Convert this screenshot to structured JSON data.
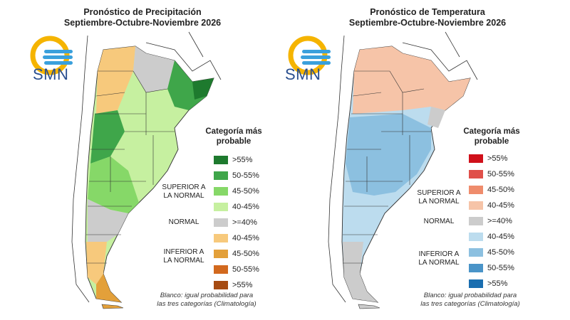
{
  "panels": [
    {
      "title_line1": "Pronóstico de Precipitación",
      "title_line2": "Septiembre-Octubre-Noviembre 2026",
      "logo_text": "SMN",
      "legend_title_line1": "Categoría más",
      "legend_title_line2": "probable",
      "legend": [
        {
          "label": ">55%",
          "color": "#1e7a2e"
        },
        {
          "label": "50-55%",
          "color": "#3fa64a"
        },
        {
          "label": "45-50%",
          "color": "#86d868"
        },
        {
          "label": "40-45%",
          "color": "#c6f0a0"
        },
        {
          "label": ">=40%",
          "color": "#cccccc"
        },
        {
          "label": "40-45%",
          "color": "#f7c97c"
        },
        {
          "label": "45-50%",
          "color": "#e3a03a"
        },
        {
          "label": "50-55%",
          "color": "#d2691e"
        },
        {
          "label": ">55%",
          "color": "#a64b12"
        }
      ],
      "upper_label_line1": "SUPERIOR A",
      "upper_label_line2": "LA NORMAL",
      "normal_label": "NORMAL",
      "lower_label_line1": "INFERIOR A",
      "lower_label_line2": "LA NORMAL",
      "footnote_line1": "Blanco: igual probabilidad para",
      "footnote_line2": "las tres categorías (Climatología)"
    },
    {
      "title_line1": "Pronóstico de Temperatura",
      "title_line2": "Septiembre-Octubre-Noviembre 2026",
      "logo_text": "SMN",
      "legend_title_line1": "Categoría más",
      "legend_title_line2": "probable",
      "legend": [
        {
          "label": ">55%",
          "color": "#d0101a"
        },
        {
          "label": "50-55%",
          "color": "#e0504a"
        },
        {
          "label": "45-50%",
          "color": "#ef8c6c"
        },
        {
          "label": "40-45%",
          "color": "#f6c4a8"
        },
        {
          "label": ">=40%",
          "color": "#cccccc"
        },
        {
          "label": "40-45%",
          "color": "#bcdcee"
        },
        {
          "label": "45-50%",
          "color": "#8cc0e0"
        },
        {
          "label": "50-55%",
          "color": "#4a94c8"
        },
        {
          "label": ">55%",
          "color": "#1a6eb0"
        }
      ],
      "upper_label_line1": "SUPERIOR A",
      "upper_label_line2": "LA NORMAL",
      "normal_label": "NORMAL",
      "lower_label_line1": "INFERIOR A",
      "lower_label_line2": "LA NORMAL",
      "footnote_line1": "Blanco: igual probabilidad para",
      "footnote_line2": "las tres categorías (Climatología)"
    }
  ],
  "map_colors": {
    "precip": {
      "north_west": "#f7c97c",
      "north_center": "#cccccc",
      "north_east": "#3fa64a",
      "north_east_dark": "#1e7a2e",
      "center": "#c6f0a0",
      "center_mid": "#86d868",
      "west_strip": "#3fa64a",
      "south": "#cccccc",
      "far_south": "#f7c97c",
      "tip": "#e3a03a"
    },
    "temp": {
      "north": "#f6c4a8",
      "north_east_gray": "#cccccc",
      "center": "#8cc0e0",
      "center_light": "#bcdcee",
      "south_gray": "#cccccc"
    }
  }
}
